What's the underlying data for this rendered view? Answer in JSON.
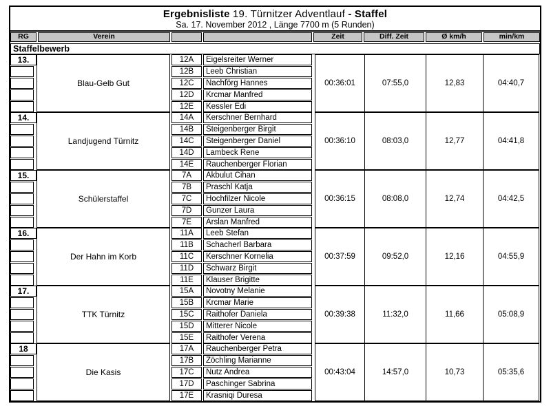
{
  "colors": {
    "header_bg": "#c5c5c5",
    "border": "#000000",
    "text": "#000000",
    "page_bg": "#ffffff"
  },
  "header": {
    "title_bold_lead": "Ergebnisliste",
    "title_main": "19. Türnitzer Adventlauf",
    "title_bold_tail": "- Staffel",
    "subtitle": "Sa. 17. November 2012 , Länge 7700 m (5 Runden)"
  },
  "columns": {
    "rg": "RG",
    "verein": "Verein",
    "bib": "",
    "name": "",
    "zeit": "Zeit",
    "diff": "Diff. Zeit",
    "kmh": "Ø km/h",
    "minkm": "min/km"
  },
  "section_label": "Staffelbewerb",
  "teams": [
    {
      "rank": "13.",
      "verein": "Blau-Gelb Gut",
      "runners": [
        {
          "bib": "12A",
          "name": "Eigelsreiter Werner"
        },
        {
          "bib": "12B",
          "name": "Leeb Christian"
        },
        {
          "bib": "12C",
          "name": "Nachförg Hannes"
        },
        {
          "bib": "12D",
          "name": "Krcmar Manfred"
        },
        {
          "bib": "12E",
          "name": "Kessler Edi"
        }
      ],
      "zeit": "00:36:01",
      "diff": "07:55,0",
      "kmh": "12,83",
      "minkm": "04:40,7"
    },
    {
      "rank": "14.",
      "verein": "Landjugend Türnitz",
      "runners": [
        {
          "bib": "14A",
          "name": "Kerschner Bernhard"
        },
        {
          "bib": "14B",
          "name": "Steigenberger Birgit"
        },
        {
          "bib": "14C",
          "name": "Steigenberger Daniel"
        },
        {
          "bib": "14D",
          "name": "Lambeck Rene"
        },
        {
          "bib": "14E",
          "name": "Rauchenberger Florian"
        }
      ],
      "zeit": "00:36:10",
      "diff": "08:03,0",
      "kmh": "12,77",
      "minkm": "04:41,8"
    },
    {
      "rank": "15.",
      "verein": "Schülerstaffel",
      "runners": [
        {
          "bib": "7A",
          "name": "Akbulut Cihan"
        },
        {
          "bib": "7B",
          "name": "Praschl Katja"
        },
        {
          "bib": "7C",
          "name": "Hochfilzer Nicole"
        },
        {
          "bib": "7D",
          "name": "Gunzer Laura"
        },
        {
          "bib": "7E",
          "name": "Arslan Manfred"
        }
      ],
      "zeit": "00:36:15",
      "diff": "08:08,0",
      "kmh": "12,74",
      "minkm": "04:42,5"
    },
    {
      "rank": "16.",
      "verein": "Der Hahn im Korb",
      "runners": [
        {
          "bib": "11A",
          "name": "Leeb Stefan"
        },
        {
          "bib": "11B",
          "name": "Schacherl Barbara"
        },
        {
          "bib": "11C",
          "name": "Kerschner Kornelia"
        },
        {
          "bib": "11D",
          "name": "Schwarz Birgit"
        },
        {
          "bib": "11E",
          "name": "Klauser Brigitte"
        }
      ],
      "zeit": "00:37:59",
      "diff": "09:52,0",
      "kmh": "12,16",
      "minkm": "04:55,9"
    },
    {
      "rank": "17.",
      "verein": "TTK Türnitz",
      "runners": [
        {
          "bib": "15A",
          "name": "Novotny Melanie"
        },
        {
          "bib": "15B",
          "name": "Krcmar Marie"
        },
        {
          "bib": "15C",
          "name": "Raithofer Daniela"
        },
        {
          "bib": "15D",
          "name": "Mitterer Nicole"
        },
        {
          "bib": "15E",
          "name": "Raithofer Verena"
        }
      ],
      "zeit": "00:39:38",
      "diff": "11:32,0",
      "kmh": "11,66",
      "minkm": "05:08,9"
    },
    {
      "rank": "18",
      "verein": "Die Kasis",
      "runners": [
        {
          "bib": "17A",
          "name": "Rauchenberger Petra"
        },
        {
          "bib": "17B",
          "name": "Zöchling Marianne"
        },
        {
          "bib": "17C",
          "name": "Nutz Andrea"
        },
        {
          "bib": "17D",
          "name": "Paschinger Sabrina"
        },
        {
          "bib": "17E",
          "name": "Krasniqi Duresa"
        }
      ],
      "zeit": "00:43:04",
      "diff": "14:57,0",
      "kmh": "10,73",
      "minkm": "05:35,6"
    }
  ]
}
